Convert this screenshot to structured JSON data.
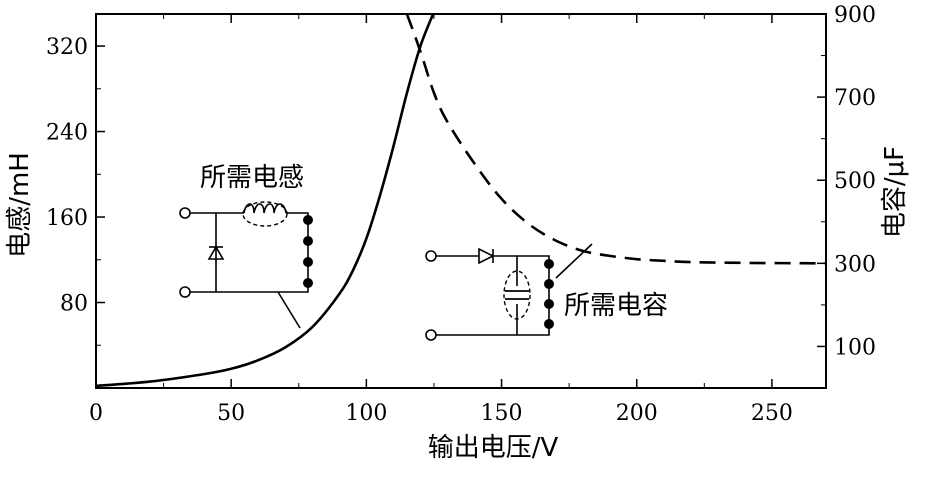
{
  "chart_data": {
    "type": "line",
    "xlabel": "输出电压/V",
    "ylabel_left": "电感/mH",
    "ylabel_right": "电容/μF",
    "xlim": [
      0,
      270
    ],
    "ylim_left": [
      0,
      350
    ],
    "ylim_right": [
      0,
      900
    ],
    "x_ticks": [
      0,
      50,
      100,
      150,
      200,
      250
    ],
    "y_left_ticks": [
      80,
      160,
      240,
      320
    ],
    "y_right_ticks": [
      100,
      300,
      500,
      700,
      900
    ],
    "grid": false,
    "series": [
      {
        "name": "所需电感",
        "axis": "left",
        "style": "solid",
        "x": [
          0,
          20,
          40,
          50,
          60,
          70,
          80,
          90,
          95,
          100,
          105,
          110,
          115,
          120,
          125
        ],
        "y": [
          2,
          6,
          13,
          18,
          26,
          38,
          57,
          88,
          110,
          140,
          180,
          226,
          276,
          320,
          352
        ]
      },
      {
        "name": "所需电容",
        "axis": "right",
        "style": "dashed",
        "x": [
          115,
          120,
          125,
          130,
          140,
          150,
          160,
          170,
          180,
          190,
          200,
          210,
          220,
          240,
          270
        ],
        "y": [
          900,
          810,
          710,
          640,
          540,
          455,
          395,
          355,
          330,
          318,
          310,
          306,
          303,
          301,
          300
        ]
      }
    ],
    "annotations": [
      {
        "text": "所需电感",
        "target_series": 0
      },
      {
        "text": "所需电容",
        "target_series": 1
      }
    ]
  }
}
